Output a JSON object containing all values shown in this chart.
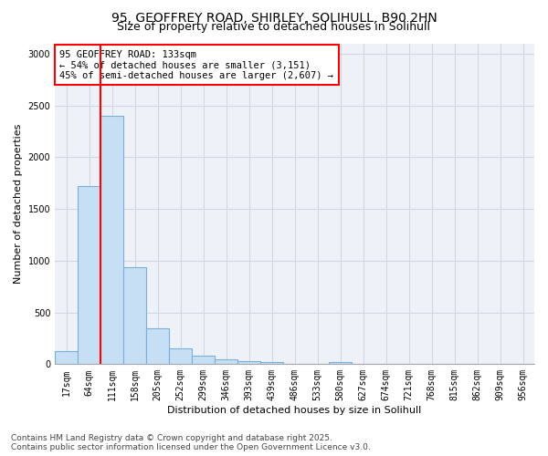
{
  "title_line1": "95, GEOFFREY ROAD, SHIRLEY, SOLIHULL, B90 2HN",
  "title_line2": "Size of property relative to detached houses in Solihull",
  "xlabel": "Distribution of detached houses by size in Solihull",
  "ylabel": "Number of detached properties",
  "bar_labels": [
    "17sqm",
    "64sqm",
    "111sqm",
    "158sqm",
    "205sqm",
    "252sqm",
    "299sqm",
    "346sqm",
    "393sqm",
    "439sqm",
    "486sqm",
    "533sqm",
    "580sqm",
    "627sqm",
    "674sqm",
    "721sqm",
    "768sqm",
    "815sqm",
    "862sqm",
    "909sqm",
    "956sqm"
  ],
  "bar_heights": [
    130,
    1720,
    2400,
    940,
    350,
    150,
    80,
    45,
    30,
    20,
    0,
    0,
    20,
    0,
    0,
    0,
    0,
    0,
    0,
    0,
    0
  ],
  "bar_color": "#c6dff5",
  "bar_edge_color": "#7ab0d8",
  "grid_color": "#d0d8e4",
  "vline_color": "red",
  "vline_x": 1.5,
  "annotation_text": "95 GEOFFREY ROAD: 133sqm\n← 54% of detached houses are smaller (3,151)\n45% of semi-detached houses are larger (2,607) →",
  "annotation_box_facecolor": "white",
  "annotation_box_edgecolor": "red",
  "annotation_fontsize": 7.5,
  "ylim": [
    0,
    3100
  ],
  "yticks": [
    0,
    500,
    1000,
    1500,
    2000,
    2500,
    3000
  ],
  "title_fontsize": 10,
  "subtitle_fontsize": 9,
  "axis_label_fontsize": 8,
  "tick_fontsize": 7,
  "footnote_line1": "Contains HM Land Registry data © Crown copyright and database right 2025.",
  "footnote_line2": "Contains public sector information licensed under the Open Government Licence v3.0.",
  "footnote_fontsize": 6.5,
  "bg_color": "#eef2f8"
}
